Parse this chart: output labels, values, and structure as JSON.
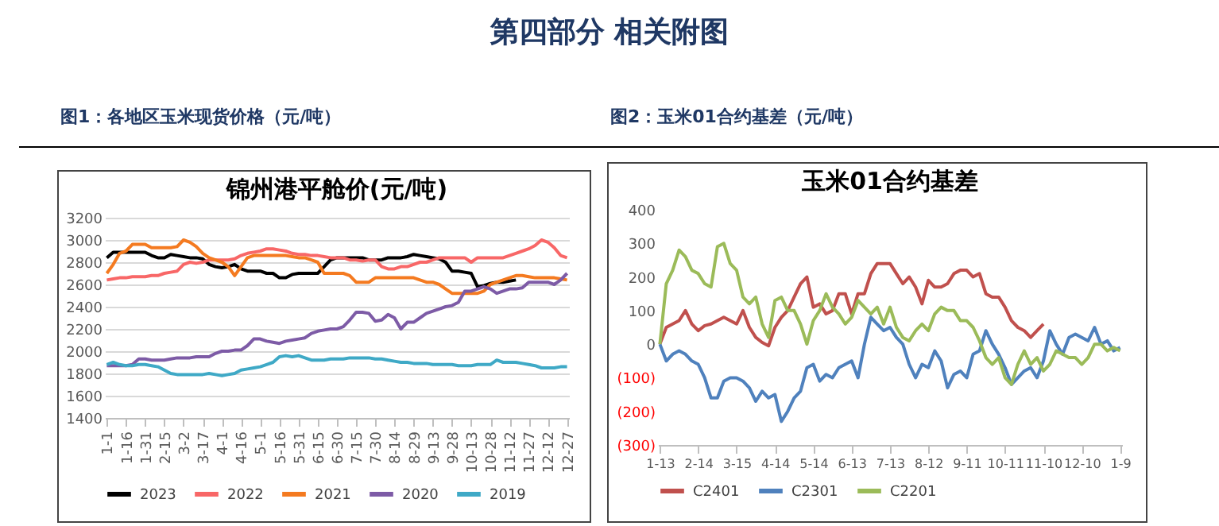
{
  "chart_data": [
    {
      "type": "line",
      "title": "锦州港平舱价(元/吨)",
      "subtitle": "图1：各地区玉米现货价格（元/吨）",
      "annotations": [
        "第四部分  相关附图"
      ],
      "categories": [
        "1-1",
        null,
        null,
        "1-16",
        null,
        null,
        "1-31",
        null,
        null,
        "2-15",
        null,
        null,
        "3-2",
        null,
        null,
        "3-17",
        null,
        null,
        "4-1",
        null,
        null,
        "4-16",
        null,
        null,
        "5-1",
        null,
        null,
        "5-16",
        null,
        null,
        "5-31",
        null,
        null,
        "6-15",
        null,
        null,
        "6-30",
        null,
        null,
        "7-15",
        null,
        null,
        "7-30",
        null,
        null,
        "8-14",
        null,
        null,
        "8-29",
        null,
        null,
        "9-13",
        null,
        null,
        "9-28",
        null,
        null,
        "10-13",
        null,
        null,
        "10-28",
        null,
        null,
        "11-12",
        null,
        null,
        "11-27",
        null,
        null,
        "12-12",
        null,
        null,
        "12-27"
      ],
      "series": [
        {
          "name": "2023",
          "color": "#000000",
          "values": [
            2840,
            2890,
            2890,
            2890,
            2890,
            2890,
            2890,
            2860,
            2840,
            2840,
            2870,
            2860,
            2850,
            2840,
            2840,
            2830,
            2780,
            2760,
            2750,
            2760,
            2780,
            2740,
            2720,
            2720,
            2720,
            2700,
            2700,
            2660,
            2660,
            2690,
            2700,
            2700,
            2700,
            2700,
            2760,
            2820,
            2840,
            2840,
            2840,
            2840,
            2840,
            2820,
            2820,
            2820,
            2840,
            2840,
            2840,
            2850,
            2870,
            2860,
            2850,
            2840,
            2830,
            2800,
            2720,
            2720,
            2710,
            2700,
            2580,
            2590,
            2610,
            2620,
            2620,
            2630,
            2640,
            null,
            null,
            null,
            null,
            null,
            null,
            null,
            null
          ]
        },
        {
          "name": "2022",
          "color": "#f86767",
          "values": [
            2640,
            2650,
            2660,
            2660,
            2670,
            2670,
            2670,
            2680,
            2680,
            2700,
            2710,
            2720,
            2780,
            2800,
            2790,
            2800,
            2820,
            2820,
            2820,
            2820,
            2830,
            2860,
            2880,
            2890,
            2900,
            2920,
            2920,
            2910,
            2900,
            2880,
            2870,
            2870,
            2860,
            2860,
            2850,
            2840,
            2840,
            2840,
            2820,
            2820,
            2810,
            2820,
            2820,
            2760,
            2740,
            2740,
            2760,
            2760,
            2780,
            2800,
            2800,
            2820,
            2840,
            2840,
            2840,
            2840,
            2840,
            2800,
            2840,
            2840,
            2840,
            2840,
            2840,
            2860,
            2880,
            2900,
            2920,
            2950,
            3000,
            2980,
            2930,
            2860,
            2840
          ]
        },
        {
          "name": "2021",
          "color": "#f47a20",
          "values": [
            2700,
            2780,
            2880,
            2900,
            2960,
            2960,
            2960,
            2930,
            2930,
            2930,
            2930,
            2940,
            3000,
            2980,
            2940,
            2880,
            2840,
            2820,
            2800,
            2760,
            2680,
            2760,
            2840,
            2860,
            2860,
            2860,
            2860,
            2860,
            2860,
            2850,
            2840,
            2840,
            2820,
            2800,
            2700,
            2700,
            2700,
            2700,
            2680,
            2620,
            2620,
            2620,
            2660,
            2660,
            2660,
            2660,
            2660,
            2660,
            2660,
            2640,
            2620,
            2620,
            2600,
            2560,
            2520,
            2520,
            2520,
            2520,
            2520,
            2540,
            2600,
            2620,
            2640,
            2660,
            2680,
            2680,
            2670,
            2660,
            2660,
            2660,
            2660,
            2650,
            2640
          ]
        },
        {
          "name": "2020",
          "color": "#7d5ba6",
          "values": [
            1870,
            1870,
            1870,
            1870,
            1880,
            1930,
            1930,
            1920,
            1920,
            1920,
            1930,
            1940,
            1940,
            1940,
            1950,
            1950,
            1950,
            1980,
            2000,
            2000,
            2010,
            2010,
            2050,
            2110,
            2110,
            2090,
            2080,
            2070,
            2090,
            2100,
            2110,
            2120,
            2160,
            2180,
            2190,
            2200,
            2200,
            2220,
            2280,
            2350,
            2350,
            2340,
            2270,
            2280,
            2330,
            2300,
            2200,
            2260,
            2260,
            2300,
            2340,
            2360,
            2380,
            2400,
            2410,
            2440,
            2540,
            2540,
            2560,
            2580,
            2560,
            2520,
            2540,
            2560,
            2560,
            2570,
            2620,
            2620,
            2620,
            2620,
            2600,
            2640,
            2700
          ]
        },
        {
          "name": "2019",
          "color": "#3fa9c6",
          "values": [
            1880,
            1900,
            1880,
            1870,
            1870,
            1880,
            1880,
            1870,
            1860,
            1830,
            1800,
            1790,
            1790,
            1790,
            1790,
            1790,
            1800,
            1790,
            1780,
            1790,
            1800,
            1830,
            1840,
            1850,
            1860,
            1880,
            1900,
            1950,
            1960,
            1950,
            1960,
            1940,
            1920,
            1920,
            1920,
            1930,
            1930,
            1930,
            1940,
            1940,
            1940,
            1940,
            1930,
            1930,
            1920,
            1910,
            1900,
            1900,
            1890,
            1890,
            1890,
            1880,
            1880,
            1880,
            1880,
            1870,
            1870,
            1870,
            1880,
            1880,
            1880,
            1920,
            1900,
            1900,
            1900,
            1890,
            1880,
            1870,
            1850,
            1850,
            1850,
            1860,
            1860
          ]
        }
      ],
      "ylim": [
        1400,
        3200
      ],
      "yticks": [
        1400,
        1600,
        1800,
        2000,
        2200,
        2400,
        2600,
        2800,
        3000,
        3200
      ],
      "grid": "y",
      "legend": "bottom"
    },
    {
      "type": "line",
      "title": "玉米01合约基差",
      "subtitle": "图2：玉米01合约基差（元/吨）",
      "categories": [
        "1-13",
        null,
        null,
        null,
        null,
        null,
        "2-14",
        null,
        null,
        null,
        null,
        null,
        "3-15",
        null,
        null,
        null,
        null,
        null,
        "4-14",
        null,
        null,
        null,
        null,
        null,
        "5-14",
        null,
        null,
        null,
        null,
        null,
        "6-13",
        null,
        null,
        null,
        null,
        null,
        "7-13",
        null,
        null,
        null,
        null,
        null,
        "8-12",
        null,
        null,
        null,
        null,
        null,
        "9-11",
        null,
        null,
        null,
        null,
        null,
        "10-11",
        null,
        null,
        null,
        null,
        null,
        "11-10",
        null,
        null,
        null,
        null,
        null,
        "12-10",
        null,
        null,
        null,
        null,
        null,
        "1-9"
      ],
      "series": [
        {
          "name": "C2401",
          "color": "#c0504d",
          "values": [
            0,
            50,
            60,
            70,
            100,
            60,
            40,
            55,
            60,
            70,
            80,
            70,
            60,
            100,
            50,
            20,
            5,
            -5,
            50,
            80,
            100,
            140,
            180,
            200,
            110,
            120,
            90,
            100,
            150,
            150,
            90,
            150,
            150,
            210,
            240,
            240,
            240,
            210,
            180,
            200,
            170,
            120,
            190,
            170,
            170,
            180,
            210,
            220,
            220,
            200,
            210,
            150,
            140,
            140,
            110,
            70,
            50,
            40,
            20,
            40,
            60,
            null,
            null,
            null,
            null,
            null,
            null,
            null,
            null,
            null,
            null,
            null,
            null
          ]
        },
        {
          "name": "C2301",
          "color": "#4f81bd",
          "values": [
            0,
            -50,
            -30,
            -20,
            -30,
            -50,
            -60,
            -100,
            -160,
            -160,
            -110,
            -100,
            -100,
            -110,
            -130,
            -170,
            -140,
            -160,
            -150,
            -230,
            -200,
            -160,
            -140,
            -70,
            -60,
            -110,
            -90,
            -100,
            -70,
            -60,
            -50,
            -100,
            0,
            80,
            60,
            40,
            50,
            20,
            0,
            -60,
            -100,
            -60,
            -70,
            -20,
            -50,
            -130,
            -90,
            -80,
            -100,
            -30,
            -20,
            40,
            0,
            -30,
            -70,
            -120,
            -100,
            -80,
            -70,
            -100,
            -50,
            40,
            0,
            -30,
            20,
            30,
            20,
            10,
            50,
            0,
            10,
            -20,
            -10
          ]
        },
        {
          "name": "C2201",
          "color": "#9bbb59",
          "values": [
            0,
            180,
            220,
            280,
            260,
            220,
            210,
            180,
            170,
            290,
            300,
            240,
            220,
            140,
            120,
            140,
            60,
            20,
            130,
            140,
            100,
            100,
            60,
            0,
            70,
            100,
            150,
            110,
            90,
            60,
            80,
            130,
            110,
            90,
            110,
            60,
            110,
            50,
            20,
            10,
            40,
            60,
            40,
            90,
            110,
            100,
            100,
            70,
            70,
            50,
            10,
            -40,
            -60,
            -40,
            -100,
            -120,
            -60,
            -20,
            -60,
            -40,
            -80,
            -60,
            -20,
            -30,
            -40,
            -40,
            -60,
            -40,
            0,
            0,
            -20,
            -10,
            -20
          ]
        }
      ],
      "ylim": [
        -300,
        400
      ],
      "yticks": [
        {
          "value": -300,
          "label": "(300)"
        },
        {
          "value": -200,
          "label": "(200)"
        },
        {
          "value": -100,
          "label": "(100)"
        },
        0,
        100,
        200,
        300,
        400
      ],
      "legend": "bottom"
    }
  ]
}
